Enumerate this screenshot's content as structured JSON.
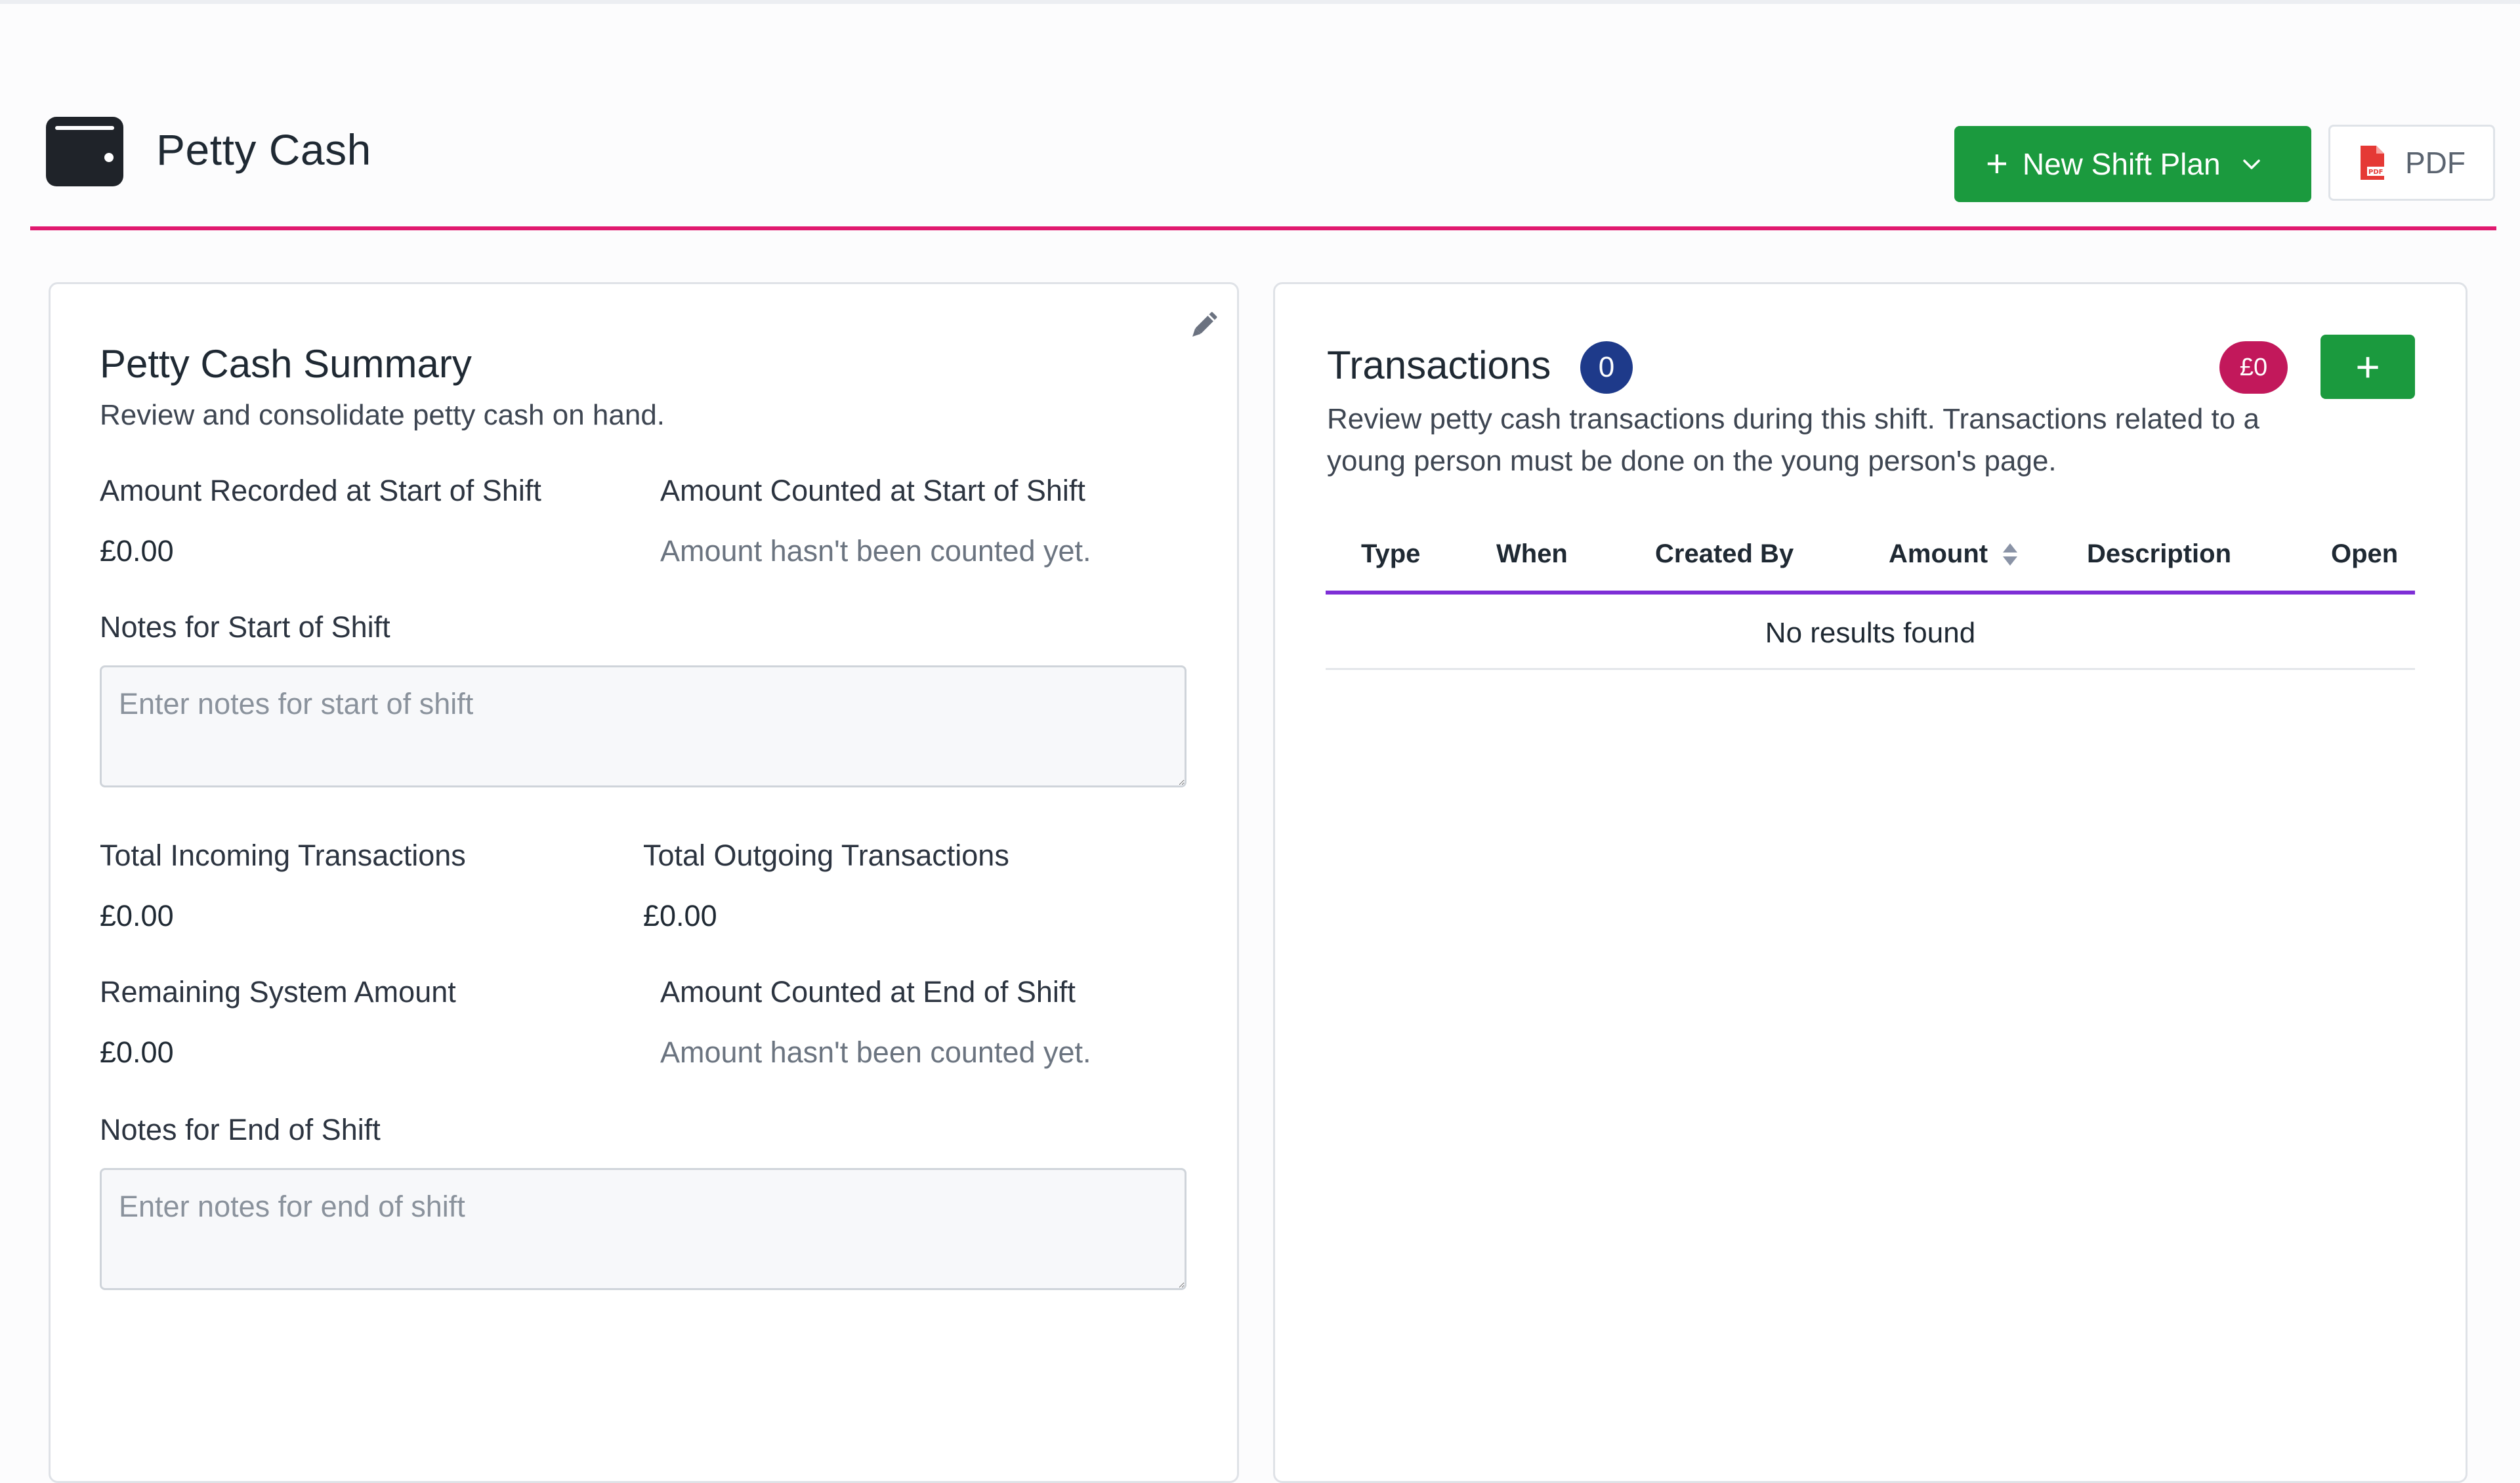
{
  "header": {
    "title": "Petty Cash",
    "new_shift_plan_label": "New Shift Plan",
    "pdf_label": "PDF"
  },
  "summary": {
    "title": "Petty Cash Summary",
    "subtitle": "Review and consolidate petty cash on hand.",
    "recorded_start_label": "Amount Recorded at Start of Shift",
    "recorded_start_value": "£0.00",
    "counted_start_label": "Amount Counted at Start of Shift",
    "counted_start_value": "Amount hasn't been counted yet.",
    "notes_start_label": "Notes for Start of Shift",
    "notes_start_placeholder": "Enter notes for start of shift",
    "incoming_label": "Total Incoming Transactions",
    "incoming_value": "£0.00",
    "outgoing_label": "Total Outgoing Transactions",
    "outgoing_value": "£0.00",
    "remaining_label": "Remaining System Amount",
    "remaining_value": "£0.00",
    "counted_end_label": "Amount Counted at End of Shift",
    "counted_end_value": "Amount hasn't been counted yet.",
    "notes_end_label": "Notes for End of Shift",
    "notes_end_placeholder": "Enter notes for end of shift"
  },
  "transactions": {
    "title": "Transactions",
    "count": "0",
    "total_badge": "£0",
    "add_label": "+",
    "description_line1": "Review petty cash transactions during this shift. Transactions related to a",
    "description_line2": "young person must be done on the young person's page.",
    "columns": [
      "Type",
      "When",
      "Created By",
      "Amount",
      "Description",
      "Open"
    ],
    "empty_message": "No results found"
  },
  "colors": {
    "accent_rule": "#e0196f",
    "primary_button": "#1b9a3e",
    "count_badge": "#1e3a8a",
    "money_badge": "#c2185b",
    "table_header_rule": "#7e2fd6"
  },
  "icons": {
    "title_icon": "wallet-icon",
    "edit": "pencil-icon",
    "pdf": "pdf-file-icon",
    "sort": "sort-icon",
    "dropdown": "chevron-down-icon"
  }
}
